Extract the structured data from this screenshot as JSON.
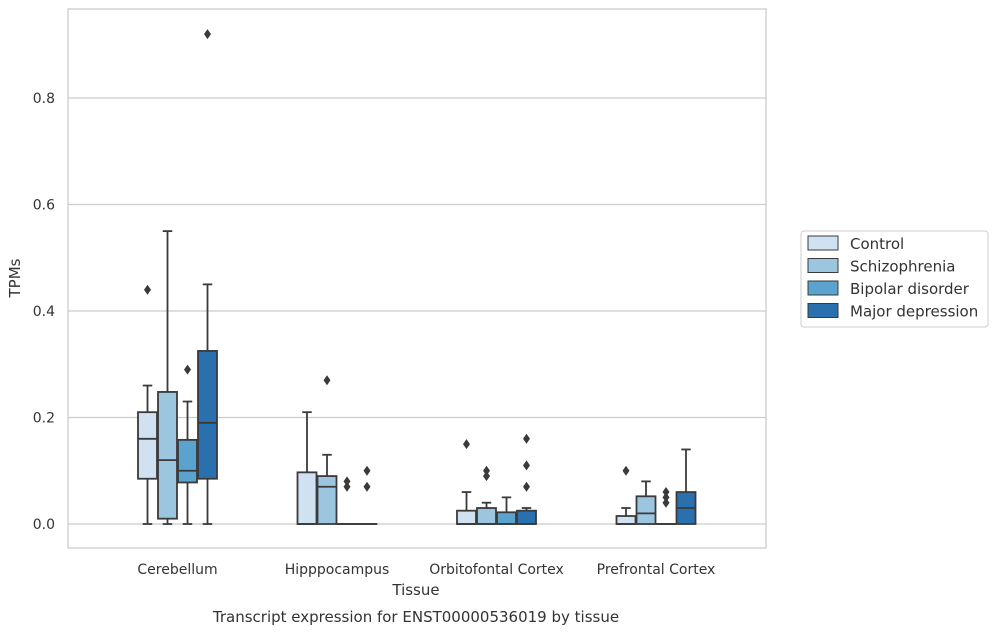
{
  "caption": "Transcript expression for ENST00000536019 by tissue",
  "colors": {
    "Control": "#d0e1f2",
    "Schizophrenia": "#9cc5df",
    "Bipolar disorder": "#5ba3cf",
    "Major depression": "#2a6fae",
    "line": "#3a3a3a",
    "grid": "#cccccc",
    "frame": "#cccccc"
  },
  "chart_data": {
    "type": "box",
    "xlabel": "Tissue",
    "ylabel": "TPMs",
    "ylim": [
      -0.045,
      0.96
    ],
    "yticks": [
      0.0,
      0.2,
      0.4,
      0.6,
      0.8
    ],
    "ytick_labels": [
      "0.0",
      "0.2",
      "0.4",
      "0.6",
      "0.8"
    ],
    "grid": "horizontal",
    "legend_position": "right-outside",
    "categories": [
      "Cerebellum",
      "Hipppocampus",
      "Orbitofontal Cortex",
      "Prefrontal Cortex"
    ],
    "series": [
      {
        "name": "Control",
        "boxes": [
          {
            "low": 0.0,
            "q1": 0.085,
            "median": 0.16,
            "q3": 0.21,
            "high": 0.26,
            "outliers": [
              0.44
            ]
          },
          {
            "low": 0.0,
            "q1": 0.0,
            "median": 0.0,
            "q3": 0.097,
            "high": 0.21,
            "outliers": []
          },
          {
            "low": 0.0,
            "q1": 0.0,
            "median": 0.0,
            "q3": 0.025,
            "high": 0.06,
            "outliers": [
              0.15
            ]
          },
          {
            "low": 0.0,
            "q1": 0.0,
            "median": 0.0,
            "q3": 0.015,
            "high": 0.03,
            "outliers": [
              0.1
            ]
          }
        ]
      },
      {
        "name": "Schizophrenia",
        "boxes": [
          {
            "low": 0.0,
            "q1": 0.01,
            "median": 0.12,
            "q3": 0.248,
            "high": 0.55,
            "outliers": []
          },
          {
            "low": 0.0,
            "q1": 0.0,
            "median": 0.07,
            "q3": 0.09,
            "high": 0.13,
            "outliers": [
              0.27
            ]
          },
          {
            "low": 0.0,
            "q1": 0.0,
            "median": 0.0,
            "q3": 0.03,
            "high": 0.04,
            "outliers": [
              0.09,
              0.1
            ]
          },
          {
            "low": 0.0,
            "q1": 0.0,
            "median": 0.02,
            "q3": 0.052,
            "high": 0.08,
            "outliers": []
          }
        ]
      },
      {
        "name": "Bipolar disorder",
        "boxes": [
          {
            "low": 0.0,
            "q1": 0.078,
            "median": 0.1,
            "q3": 0.158,
            "high": 0.23,
            "outliers": [
              0.29
            ]
          },
          {
            "low": 0.0,
            "q1": 0.0,
            "median": 0.0,
            "q3": 0.0,
            "high": 0.0,
            "outliers": [
              0.07,
              0.08
            ]
          },
          {
            "low": 0.0,
            "q1": 0.0,
            "median": 0.0,
            "q3": 0.022,
            "high": 0.05,
            "outliers": []
          },
          {
            "low": 0.0,
            "q1": 0.0,
            "median": 0.0,
            "q3": 0.0,
            "high": 0.0,
            "outliers": [
              0.04,
              0.05,
              0.06
            ]
          }
        ]
      },
      {
        "name": "Major depression",
        "boxes": [
          {
            "low": 0.0,
            "q1": 0.085,
            "median": 0.19,
            "q3": 0.325,
            "high": 0.45,
            "outliers": [
              0.92
            ]
          },
          {
            "low": 0.0,
            "q1": 0.0,
            "median": 0.0,
            "q3": 0.0,
            "high": 0.0,
            "outliers": [
              0.07,
              0.1
            ]
          },
          {
            "low": 0.0,
            "q1": 0.0,
            "median": 0.0,
            "q3": 0.025,
            "high": 0.03,
            "outliers": [
              0.07,
              0.11,
              0.16
            ]
          },
          {
            "low": 0.0,
            "q1": 0.0,
            "median": 0.03,
            "q3": 0.06,
            "high": 0.14,
            "outliers": []
          }
        ]
      }
    ]
  }
}
